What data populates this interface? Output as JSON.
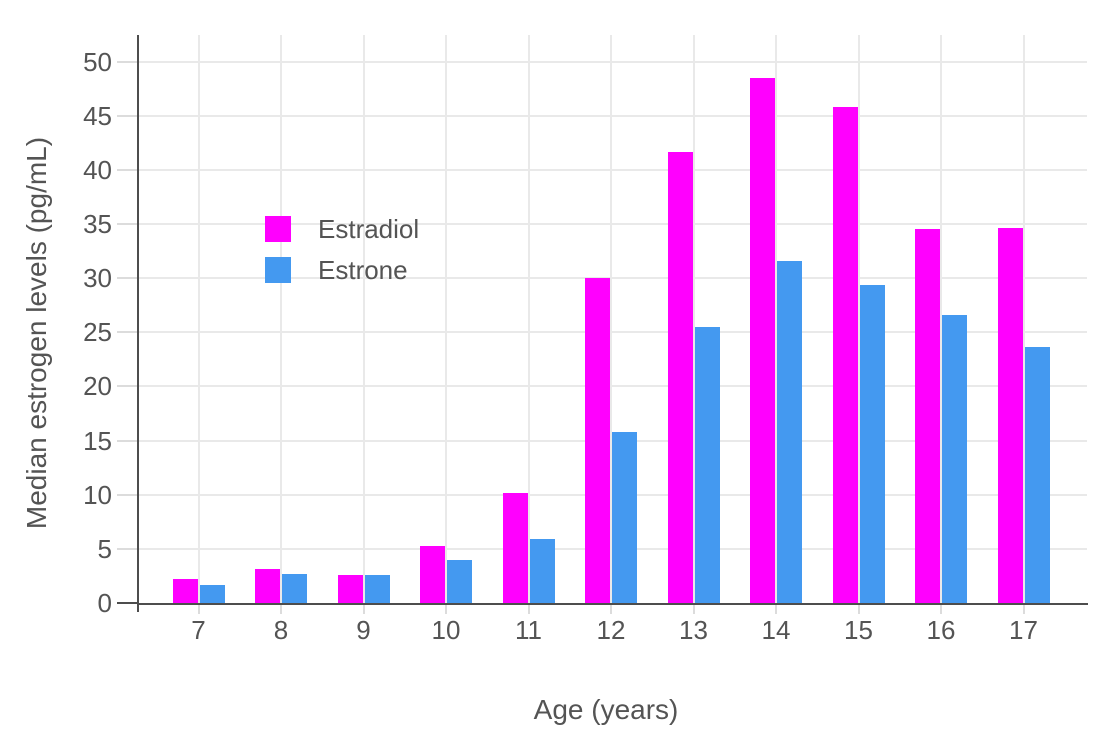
{
  "chart_data": {
    "type": "bar",
    "title": "",
    "xlabel": "Age (years)",
    "ylabel": "Median estrogen levels (pg/mL)",
    "categories": [
      "7",
      "8",
      "9",
      "10",
      "11",
      "12",
      "13",
      "14",
      "15",
      "16",
      "17"
    ],
    "series": [
      {
        "name": "Estradiol",
        "color": "#ff00fe",
        "values": [
          2.2,
          3.1,
          2.6,
          5.3,
          10.2,
          30.0,
          41.6,
          48.5,
          45.8,
          34.5,
          34.6
        ]
      },
      {
        "name": "Estrone",
        "color": "#4499f0",
        "values": [
          1.7,
          2.7,
          2.6,
          4.0,
          5.9,
          15.8,
          25.5,
          31.6,
          29.4,
          26.6,
          23.6
        ]
      }
    ],
    "ylim": [
      0,
      52.45
    ],
    "yticks": [
      0,
      5,
      10,
      15,
      20,
      25,
      30,
      35,
      40,
      45,
      50
    ],
    "grid": "both",
    "legend_position": "inside-top-left",
    "bar_mode": "grouped"
  },
  "style": {
    "background": "#ffffff",
    "grid_color": "#e9e9e9",
    "axis_color": "#4d4d4d",
    "tick_color": "#dcdcdc",
    "text_color": "#545454"
  }
}
